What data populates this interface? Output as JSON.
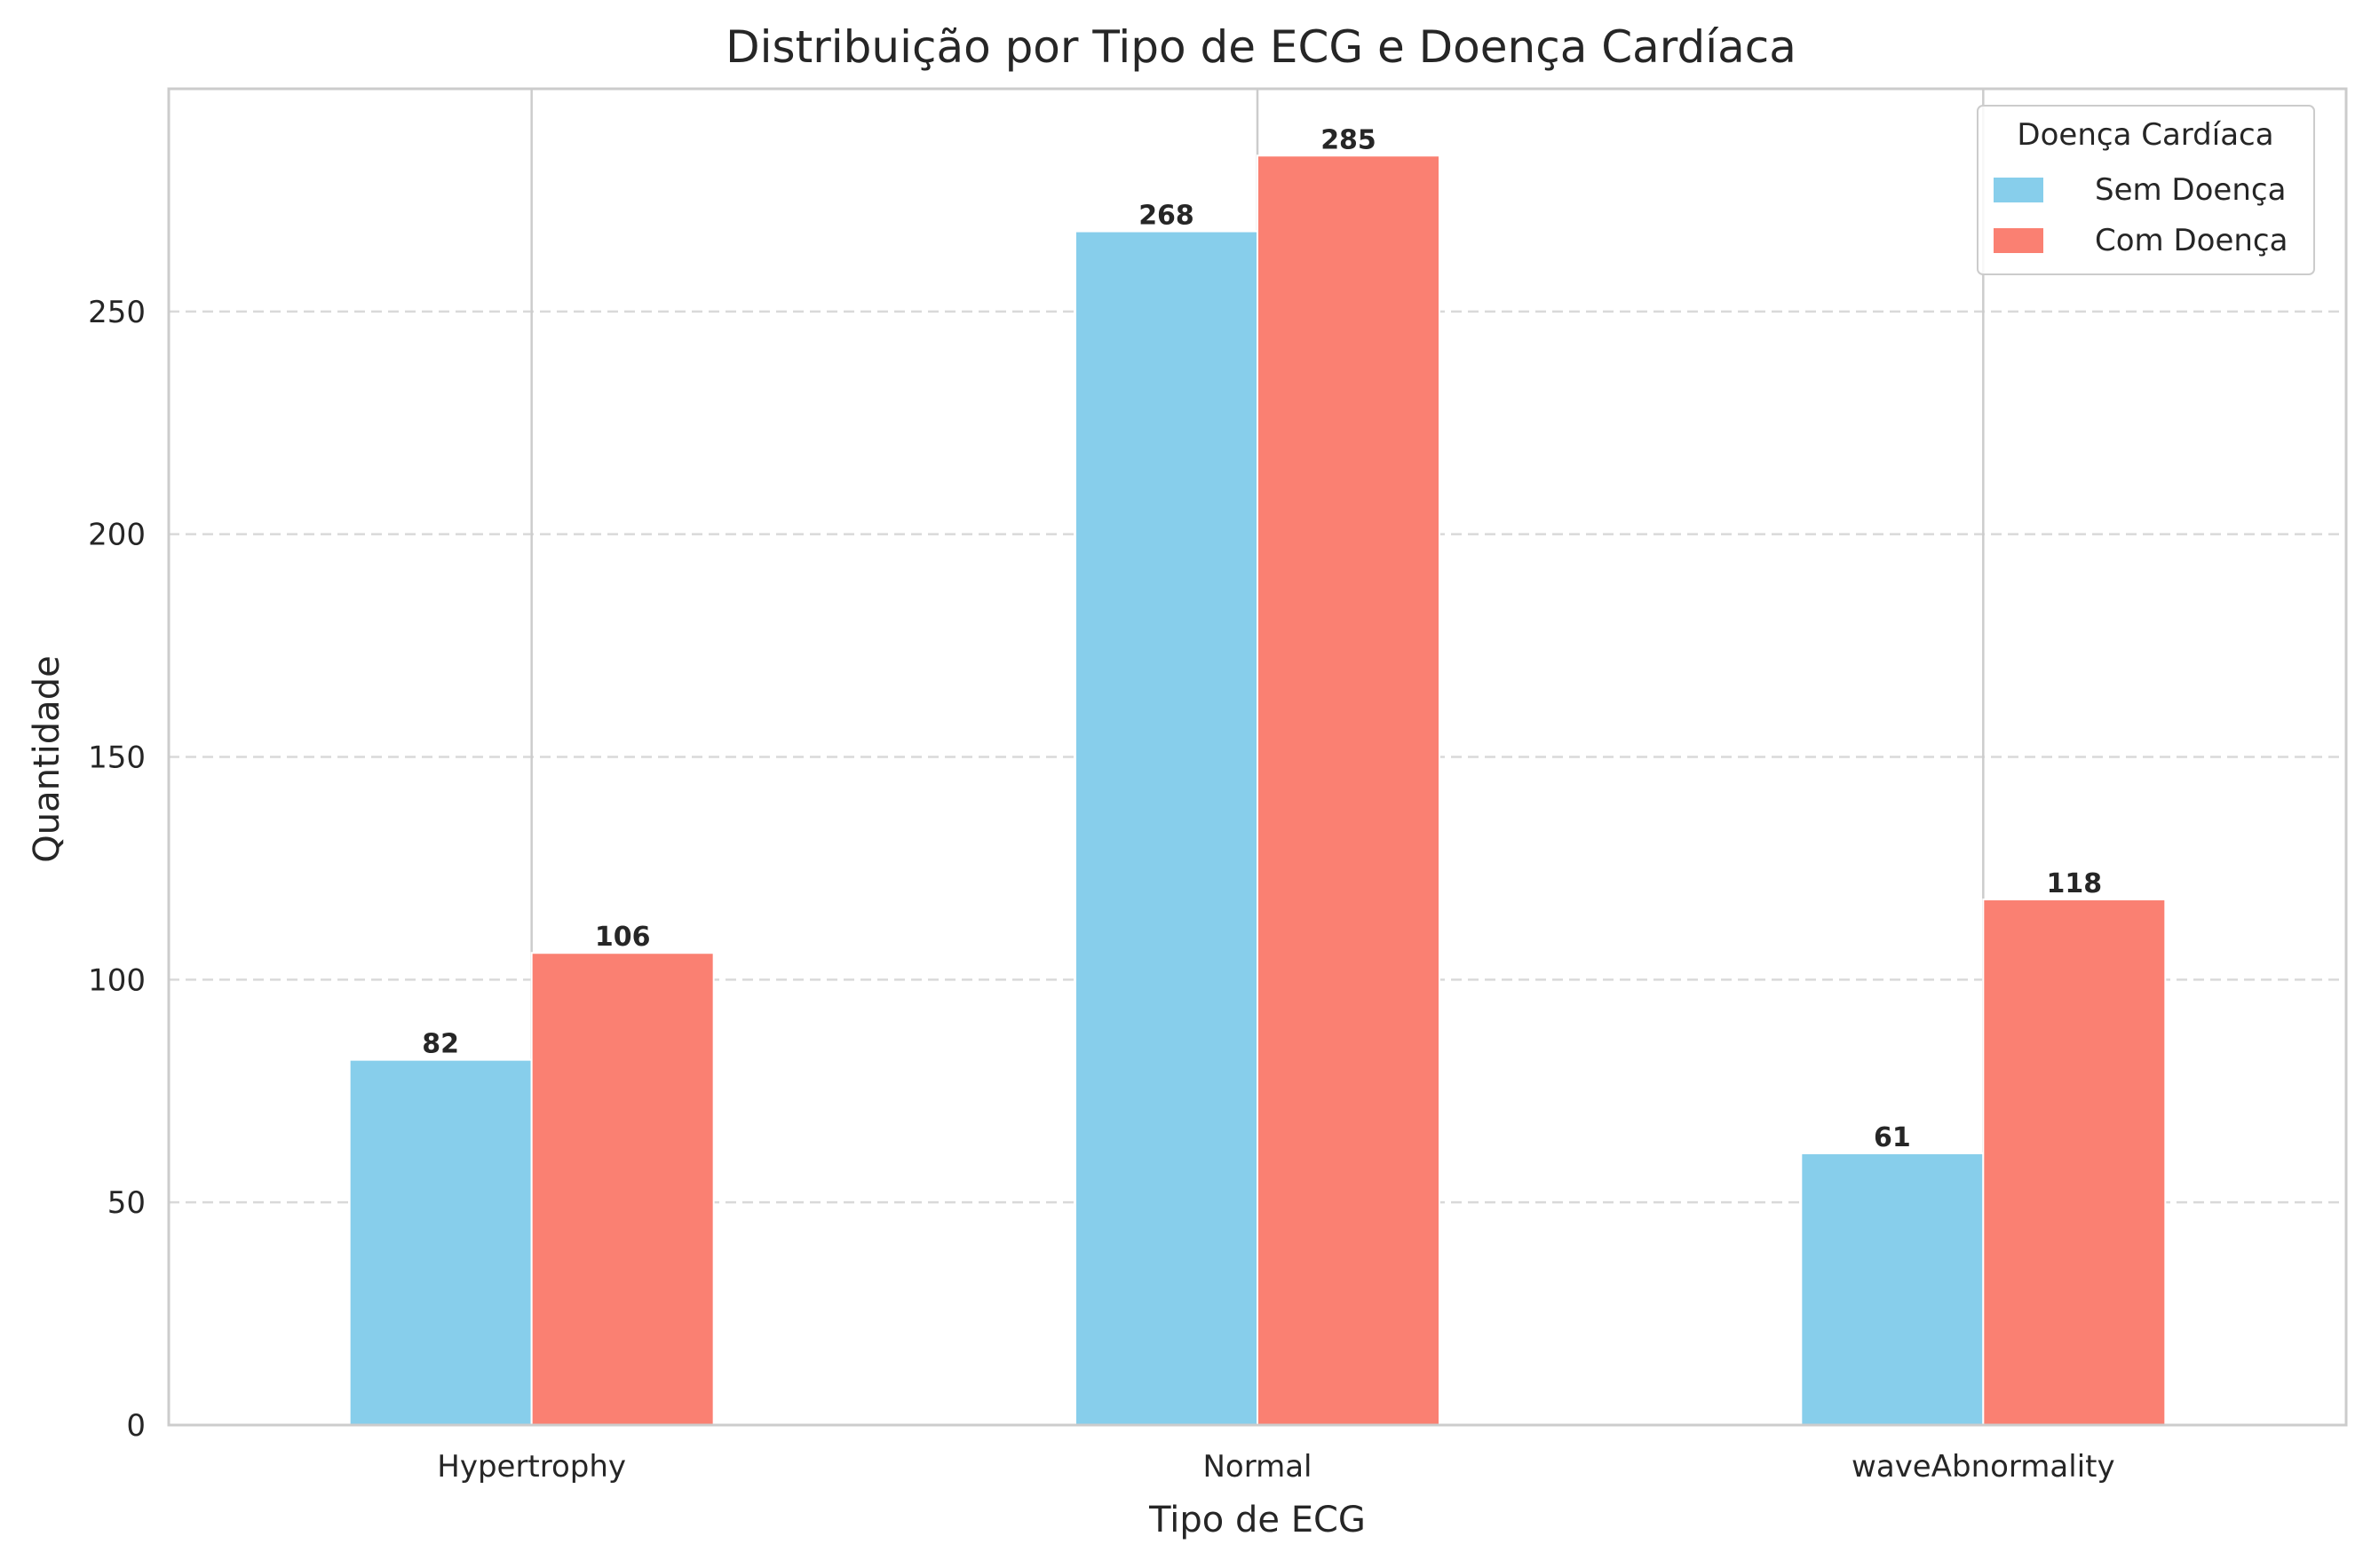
{
  "chart_data": {
    "type": "bar",
    "title": "Distribuição por Tipo de ECG e Doença Cardíaca",
    "xlabel": "Tipo de ECG",
    "ylabel": "Quantidade",
    "categories": [
      "Hypertrophy",
      "Normal",
      "waveAbnormality"
    ],
    "series": [
      {
        "name": "Sem Doença",
        "color": "#87CEEB",
        "values": [
          82,
          268,
          61
        ]
      },
      {
        "name": "Com Doença",
        "color": "#FA8072",
        "values": [
          106,
          285,
          118
        ]
      }
    ],
    "ylim": [
      0,
      300
    ],
    "yticks": [
      0,
      50,
      100,
      150,
      200,
      250
    ],
    "grid": "y-dashed",
    "legend": {
      "title": "Doença Cardíaca",
      "placement": "top-right"
    }
  }
}
